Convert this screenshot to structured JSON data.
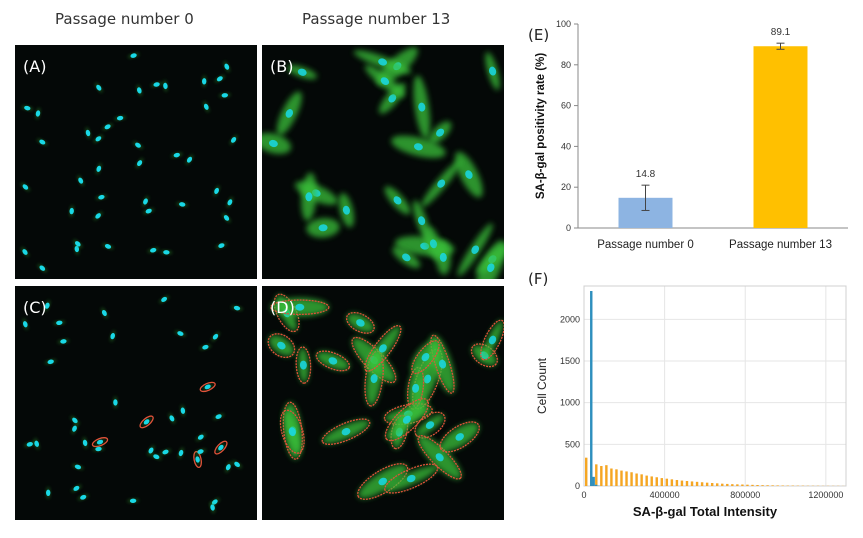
{
  "columns": {
    "left_title": "Passage number 0",
    "right_title": "Passage number 13"
  },
  "panels": [
    {
      "label": "(A)",
      "passage": 0,
      "outlined": false
    },
    {
      "label": "(B)",
      "passage": 13,
      "outlined": false
    },
    {
      "label": "(C)",
      "passage": 0,
      "outlined": true
    },
    {
      "label": "(D)",
      "passage": 13,
      "outlined": true
    }
  ],
  "colors": {
    "nucleus": "#19d8e6",
    "cytoplasm": "#3ac23a",
    "outline": "#e0523a",
    "bar_p0": "#8db4e2",
    "bar_p13": "#ffc000",
    "hist_p0": "#2e8fbe",
    "hist_p13": "#f5a623"
  },
  "chart_data": [
    {
      "panel_label": "(E)",
      "type": "bar",
      "categories": [
        "Passage number 0",
        "Passage number 13"
      ],
      "values": [
        14.8,
        89.1
      ],
      "error": [
        6.2,
        1.5
      ],
      "data_labels": [
        "14.8",
        "89.1"
      ],
      "ylabel": "SA-β-gal positivity rate (%)",
      "ylim": [
        0,
        100
      ],
      "yticks": [
        0,
        20,
        40,
        60,
        80,
        100
      ],
      "grid": false
    },
    {
      "panel_label": "(F)",
      "type": "bar",
      "xlabel": "SA-β-gal Total Intensity",
      "ylabel": "Cell Count",
      "xlim": [
        0,
        1300000
      ],
      "ylim": [
        0,
        2400
      ],
      "xticks": [
        0,
        400000,
        800000,
        1200000
      ],
      "xtick_labels": [
        "0",
        "400000",
        "800000",
        "1200000"
      ],
      "yticks": [
        0,
        500,
        1000,
        1500,
        2000
      ],
      "grid": true,
      "series": [
        {
          "bin_width": 12000,
          "x": [
            30000,
            42000,
            54000,
            66000
          ],
          "values": [
            2340,
            110,
            15,
            5
          ]
        },
        {
          "bin_width": 12000,
          "x": [
            5000,
            30000,
            55000,
            80000,
            105000,
            130000,
            155000,
            180000,
            205000,
            230000,
            255000,
            280000,
            305000,
            330000,
            355000,
            380000,
            405000,
            430000,
            455000,
            480000,
            505000,
            530000,
            555000,
            580000,
            605000,
            630000,
            655000,
            680000,
            705000,
            730000,
            755000,
            780000,
            805000,
            830000,
            855000,
            880000,
            905000,
            930000,
            955000,
            980000,
            1005000,
            1030000,
            1055000,
            1080000,
            1105000,
            1130000,
            1155000,
            1180000,
            1205000,
            1230000,
            1255000,
            1280000
          ],
          "values": [
            340,
            180,
            260,
            240,
            250,
            210,
            200,
            185,
            175,
            165,
            150,
            140,
            125,
            115,
            105,
            95,
            88,
            80,
            72,
            65,
            60,
            55,
            50,
            45,
            40,
            36,
            32,
            28,
            25,
            22,
            20,
            18,
            16,
            14,
            12,
            10,
            9,
            8,
            7,
            6,
            5,
            5,
            4,
            4,
            3,
            3,
            3,
            2,
            2,
            2,
            2,
            1
          ]
        }
      ]
    }
  ]
}
